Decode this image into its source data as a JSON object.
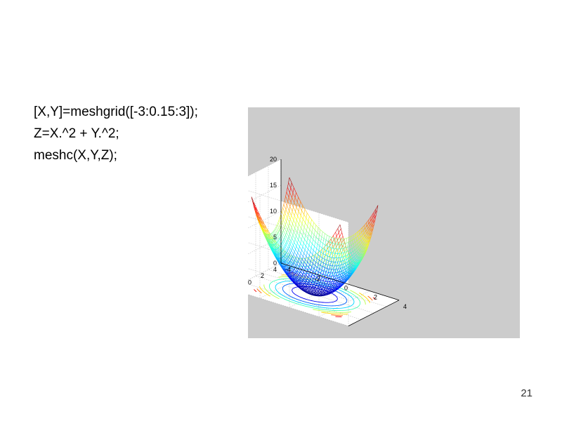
{
  "slide": {
    "code_lines": [
      "[X,Y]=meshgrid([-3:0.15:3]);",
      "Z=X.^2 + Y.^2;",
      "meshc(X,Y,Z);"
    ],
    "page_number": "21"
  },
  "chart_data": {
    "type": "surface",
    "plot_kind": "meshc",
    "function": "Z = X^2 + Y^2",
    "x_range": [
      -3,
      3
    ],
    "y_range": [
      -3,
      3
    ],
    "step": 0.15,
    "xlim": [
      -4,
      4
    ],
    "ylim": [
      -4,
      4
    ],
    "zlim": [
      0,
      20
    ],
    "x_ticks": [
      "-4",
      "-2",
      "0",
      "2",
      "4"
    ],
    "y_ticks": [
      "-4",
      "-2",
      "0",
      "2",
      "4"
    ],
    "z_ticks": [
      "0",
      "5",
      "10",
      "15",
      "20"
    ],
    "contour_levels": [
      2,
      4,
      6,
      8,
      10,
      12,
      14,
      16
    ],
    "colormap": "jet",
    "grid": true,
    "colors": {
      "figure_background": "#cccccc",
      "axes_background": "#ffffff",
      "grid": "#bdbdbd"
    }
  }
}
